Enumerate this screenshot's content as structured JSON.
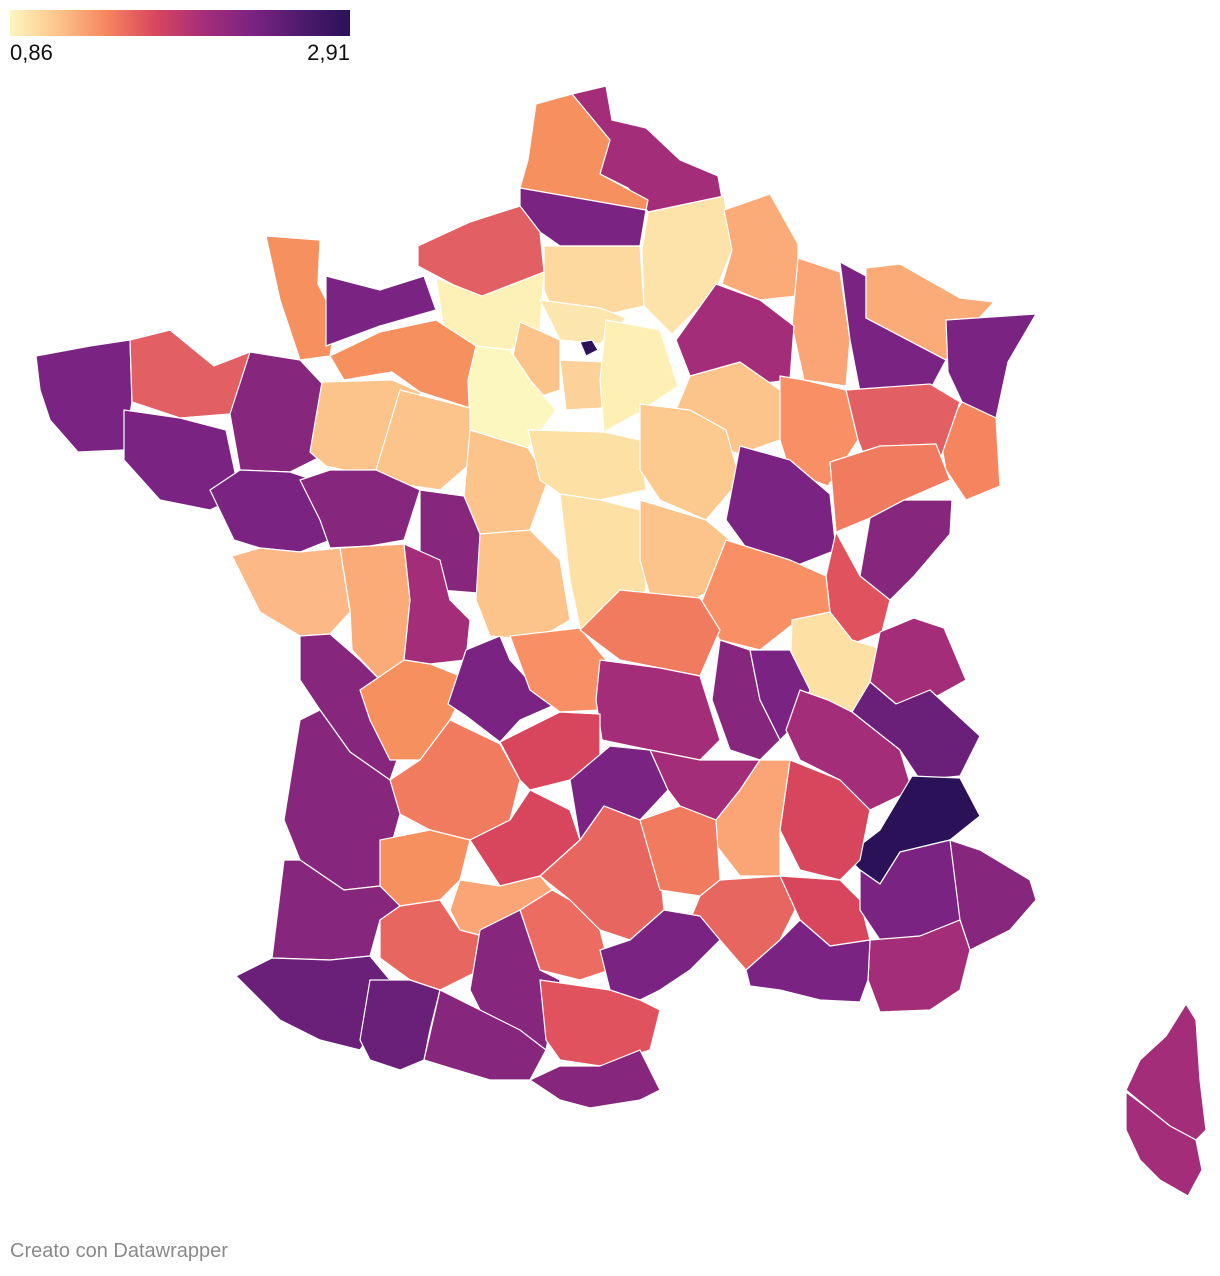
{
  "legend": {
    "min_label": "0,86",
    "max_label": "2,91",
    "min_value": 0.86,
    "max_value": 2.91,
    "color_stops": [
      "#fcf6bf",
      "#fcc48a",
      "#f6845f",
      "#d8465e",
      "#a42d7a",
      "#7b2382",
      "#4f1a6e",
      "#2b1158"
    ]
  },
  "map": {
    "country": "France",
    "region_color_range": [
      "#fcf6bf",
      "#2b1158"
    ],
    "outline_color": "#ffffff"
  },
  "credit": "Creato con Datawrapper"
}
